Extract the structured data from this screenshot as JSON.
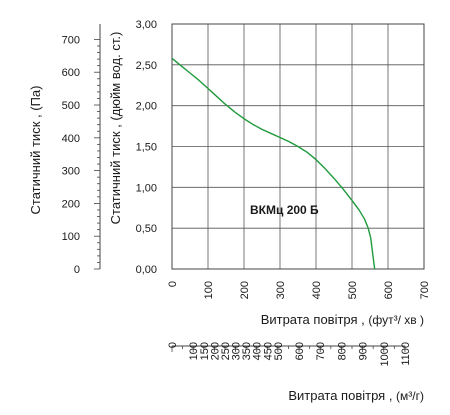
{
  "chart_data": {
    "type": "line",
    "annotation": "ВКМц 200 Б",
    "series": [
      {
        "color": "#1f9a3c",
        "x": [
          0,
          25,
          50,
          75,
          100,
          125,
          150,
          175,
          200,
          225,
          250,
          275,
          300,
          325,
          350,
          375,
          400,
          425,
          450,
          475,
          500,
          520,
          535,
          545,
          552,
          556,
          560,
          563
        ],
        "y": [
          2.58,
          2.49,
          2.4,
          2.31,
          2.21,
          2.11,
          2.01,
          1.92,
          1.84,
          1.77,
          1.71,
          1.66,
          1.61,
          1.56,
          1.5,
          1.43,
          1.34,
          1.23,
          1.11,
          0.98,
          0.84,
          0.72,
          0.61,
          0.5,
          0.38,
          0.24,
          0.1,
          0.0
        ]
      }
    ],
    "axes": {
      "x_primary": {
        "label": "Витрата повітря",
        "unit": "(фут³/  хв )",
        "range": [
          0,
          700
        ],
        "ticks": [
          "0",
          "100",
          "200",
          "300",
          "400",
          "500",
          "600",
          "700"
        ]
      },
      "x_secondary": {
        "label": "Витрата повітря",
        "unit": "(м³/г)",
        "range": [
          0,
          1190
        ],
        "ticks": [
          "0",
          "100",
          "150",
          "200",
          "250",
          "300",
          "350",
          "400",
          "450",
          "500",
          "600",
          "700",
          "800",
          "900",
          "1000",
          "1100"
        ]
      },
      "y_primary": {
        "label": "Статичний тиск",
        "unit": "(дюйм вод. ст.)",
        "range": [
          0,
          3
        ],
        "ticks": [
          "0,00",
          "0,50",
          "1,00",
          "1,50",
          "2,00",
          "2,50",
          "3,00"
        ]
      },
      "y_secondary": {
        "label": "Статичний тиск",
        "unit": "(Па)",
        "range": [
          0,
          747
        ],
        "ticks": [
          "0",
          "100",
          "200",
          "300",
          "400",
          "500",
          "600",
          "700"
        ]
      }
    },
    "grid": true
  }
}
